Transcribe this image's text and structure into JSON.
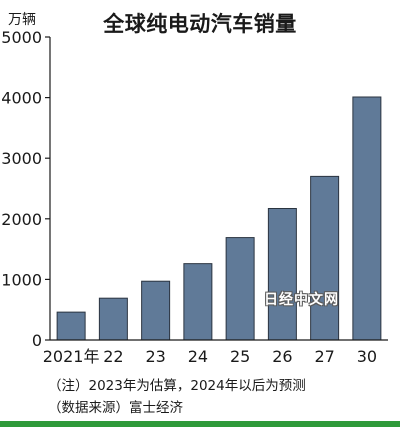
{
  "chart_data": {
    "type": "bar",
    "title": "全球纯电动汽车销量",
    "unit": "万辆",
    "categories": [
      "2021年",
      "22",
      "23",
      "24",
      "25",
      "26",
      "27",
      "30"
    ],
    "values": [
      460,
      690,
      970,
      1260,
      1690,
      2170,
      2700,
      4010
    ],
    "yticks": [
      0,
      1000,
      2000,
      3000,
      4000,
      5000
    ],
    "ylim": [
      0,
      5000
    ],
    "grid": false,
    "bar_color": "#607a98",
    "bar_stroke": "#2b3440"
  },
  "notes": {
    "line1": "（注）2023年为估算，2024年以后为预测",
    "line2": "（数据来源）富士经济"
  },
  "watermark": "日经中文网",
  "colors": {
    "bottom_strip": "#2f9a3a"
  }
}
